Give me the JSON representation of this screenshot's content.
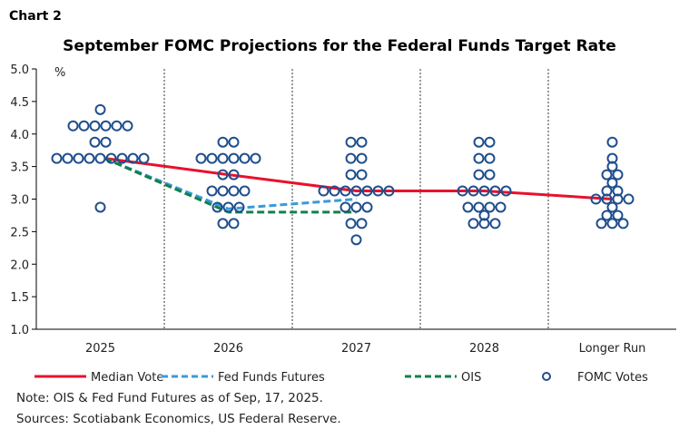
{
  "chart_label": "Chart 2",
  "chart_data": {
    "type": "scatter",
    "title": "September FOMC Projections for the Federal Funds Target Rate",
    "ylabel": "%",
    "ylim": [
      1.0,
      5.0
    ],
    "yticks": [
      "1.0",
      "1.5",
      "2.0",
      "2.5",
      "3.0",
      "3.5",
      "4.0",
      "4.5",
      "5.0"
    ],
    "categories": [
      "2025",
      "2026",
      "2027",
      "2028",
      "Longer Run"
    ],
    "dots": [
      [
        [
          4.375,
          1
        ],
        [
          4.125,
          6
        ],
        [
          3.875,
          2
        ],
        [
          3.625,
          9
        ],
        [
          2.875,
          1
        ]
      ],
      [
        [
          3.875,
          2
        ],
        [
          3.625,
          6
        ],
        [
          3.375,
          2
        ],
        [
          3.125,
          4
        ],
        [
          2.875,
          3
        ],
        [
          2.625,
          2
        ]
      ],
      [
        [
          3.875,
          2
        ],
        [
          3.625,
          2
        ],
        [
          3.375,
          2
        ],
        [
          3.125,
          7
        ],
        [
          2.875,
          3
        ],
        [
          2.625,
          2
        ],
        [
          2.375,
          1
        ]
      ],
      [
        [
          3.875,
          2
        ],
        [
          3.625,
          2
        ],
        [
          3.375,
          2
        ],
        [
          3.125,
          5
        ],
        [
          2.875,
          4
        ],
        [
          2.75,
          1
        ],
        [
          2.625,
          3
        ]
      ],
      [
        [
          3.875,
          1
        ],
        [
          3.625,
          1
        ],
        [
          3.5,
          1
        ],
        [
          3.375,
          2
        ],
        [
          3.25,
          1
        ],
        [
          3.125,
          2
        ],
        [
          3.0,
          4
        ],
        [
          2.875,
          1
        ],
        [
          2.75,
          2
        ],
        [
          2.625,
          3
        ]
      ]
    ],
    "series": [
      {
        "name": "Median Vote",
        "values": [
          3.625,
          3.375,
          3.125,
          3.125,
          3.0
        ],
        "color": "#e8112d",
        "style": "solid"
      },
      {
        "name": "Fed Funds Futures",
        "values": [
          3.625,
          2.85,
          3.0,
          null,
          null
        ],
        "color": "#3a9ad9",
        "style": "dashed"
      },
      {
        "name": "OIS",
        "values": [
          3.625,
          2.8,
          2.8,
          null,
          null
        ],
        "color": "#11804a",
        "style": "dashed"
      }
    ],
    "dots_legend": "FOMC Votes",
    "dot_color": "#1f4e8c",
    "grid": false,
    "legend_placement": "bottom"
  },
  "note": "Note: OIS & Fed Fund Futures as of Sep, 17, 2025.",
  "sources": "Sources: Scotiabank Economics, US Federal Reserve."
}
